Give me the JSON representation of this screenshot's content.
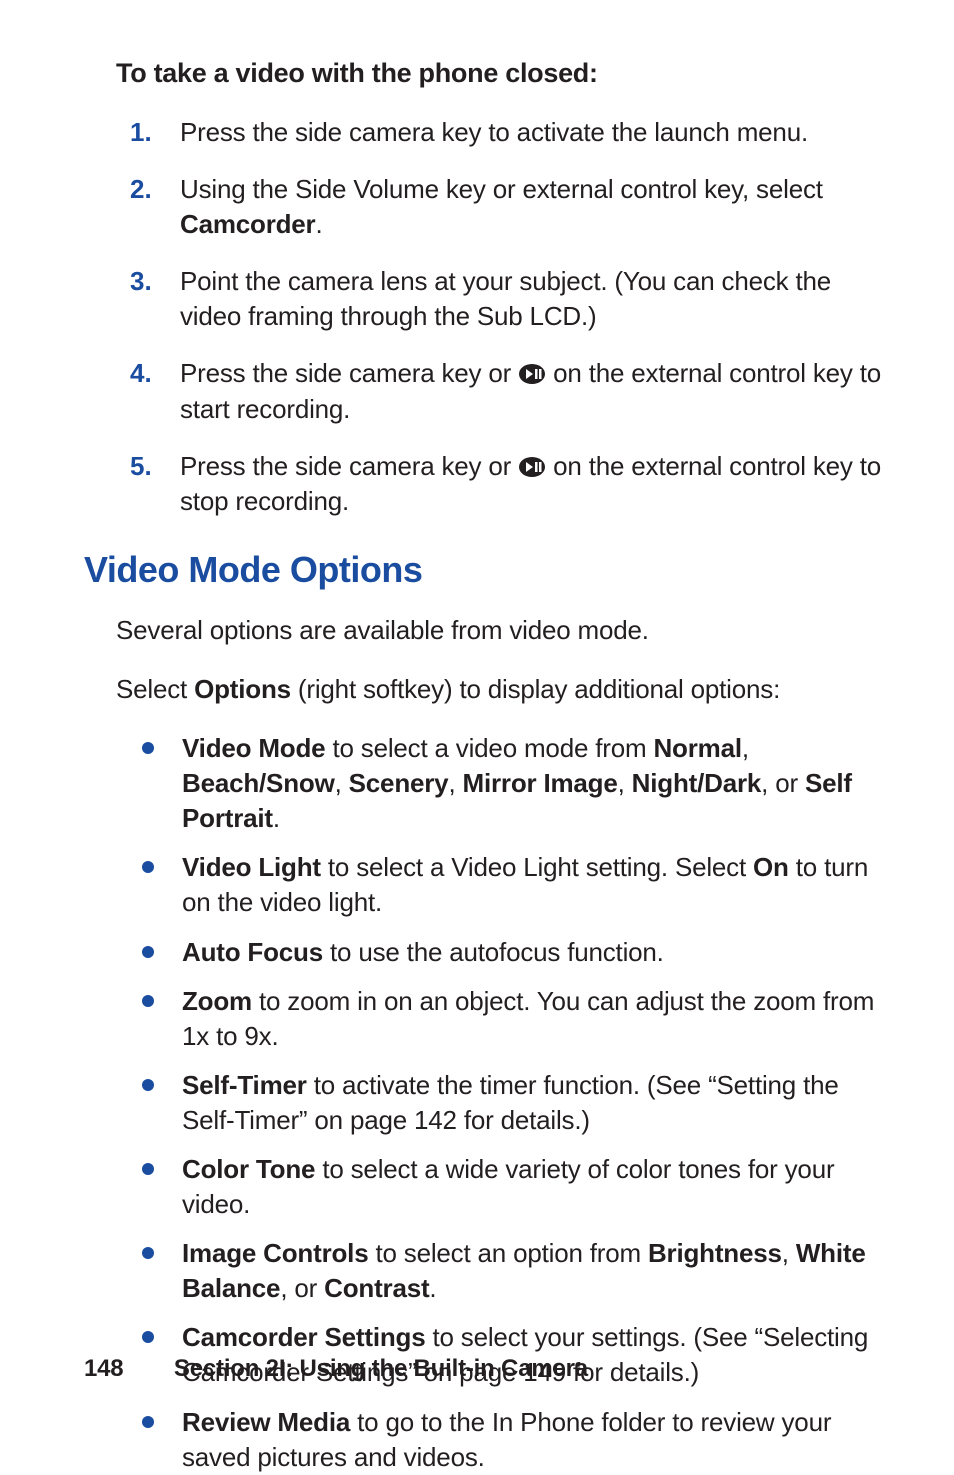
{
  "intro_heading": "To take a video with the phone closed:",
  "steps": [
    {
      "num": "1.",
      "html": "Press the side camera key to activate the launch menu."
    },
    {
      "num": "2.",
      "html": "Using the Side Volume key or external control key, select <span class=\"b\">Camcorder</span>."
    },
    {
      "num": "3.",
      "html": "Point the camera lens at your subject. (You can check the video framing through the Sub LCD.)"
    },
    {
      "num": "4.",
      "html": "Press the side camera key or <span class=\"record-icon\"><svg width=\"28\" height=\"22\" viewBox=\"0 0 28 22\"><ellipse cx=\"14\" cy=\"11\" rx=\"13\" ry=\"10\" fill=\"#231f20\"/><polygon points=\"8,6 8,16 15,11\" fill=\"#fff\"/><rect x=\"17\" y=\"6\" width=\"2.5\" height=\"10\" fill=\"#fff\"/><rect x=\"21\" y=\"6\" width=\"2.5\" height=\"10\" fill=\"#fff\"/></svg></span> on the external control key to start recording."
    },
    {
      "num": "5.",
      "html": "Press the side camera key or <span class=\"record-icon\"><svg width=\"28\" height=\"22\" viewBox=\"0 0 28 22\"><ellipse cx=\"14\" cy=\"11\" rx=\"13\" ry=\"10\" fill=\"#231f20\"/><polygon points=\"8,6 8,16 15,11\" fill=\"#fff\"/><rect x=\"17\" y=\"6\" width=\"2.5\" height=\"10\" fill=\"#fff\"/><rect x=\"21\" y=\"6\" width=\"2.5\" height=\"10\" fill=\"#fff\"/></svg></span> on the external control key to stop recording."
    }
  ],
  "section_title": "Video Mode Options",
  "para1": "Several options are available from video mode.",
  "para2_html": "Select <span class=\"b\">Options</span> (right softkey) to display additional options:",
  "bullets": [
    "<span class=\"b\">Video Mode</span> to select a video mode from <span class=\"b\">Normal</span>, <span class=\"b\">Beach/Snow</span>, <span class=\"b\">Scenery</span>, <span class=\"b\">Mirror Image</span>, <span class=\"b\">Night/Dark</span>, or <span class=\"b\">Self Portrait</span>.",
    "<span class=\"b\">Video Light</span> to select a Video Light setting. Select <span class=\"b\">On</span> to turn on the video light.",
    "<span class=\"b\">Auto Focus</span> to use the autofocus function.",
    "<span class=\"b\">Zoom</span> to zoom in on an object. You can adjust the zoom from 1x to 9x.",
    "<span class=\"b\">Self-Timer</span> to activate the timer function. (See “Setting the Self-Timer” on page 142 for details.)",
    "<span class=\"b\">Color Tone</span> to select a wide variety of color tones for your video.",
    "<span class=\"b\">Image Controls</span> to select an option from <span class=\"b\">Brightness</span>, <span class=\"b\">White Balance</span>, or <span class=\"b\">Contrast</span>.",
    "<span class=\"b\">Camcorder Settings</span> to select your settings. (See “Selecting Camcorder Settings” on page 149 for details.)",
    "<span class=\"b\">Review Media</span> to go to the In Phone folder to review your saved pictures and videos."
  ],
  "footer": {
    "page": "148",
    "section": "Section 2I: Using the Built-in Camera"
  }
}
